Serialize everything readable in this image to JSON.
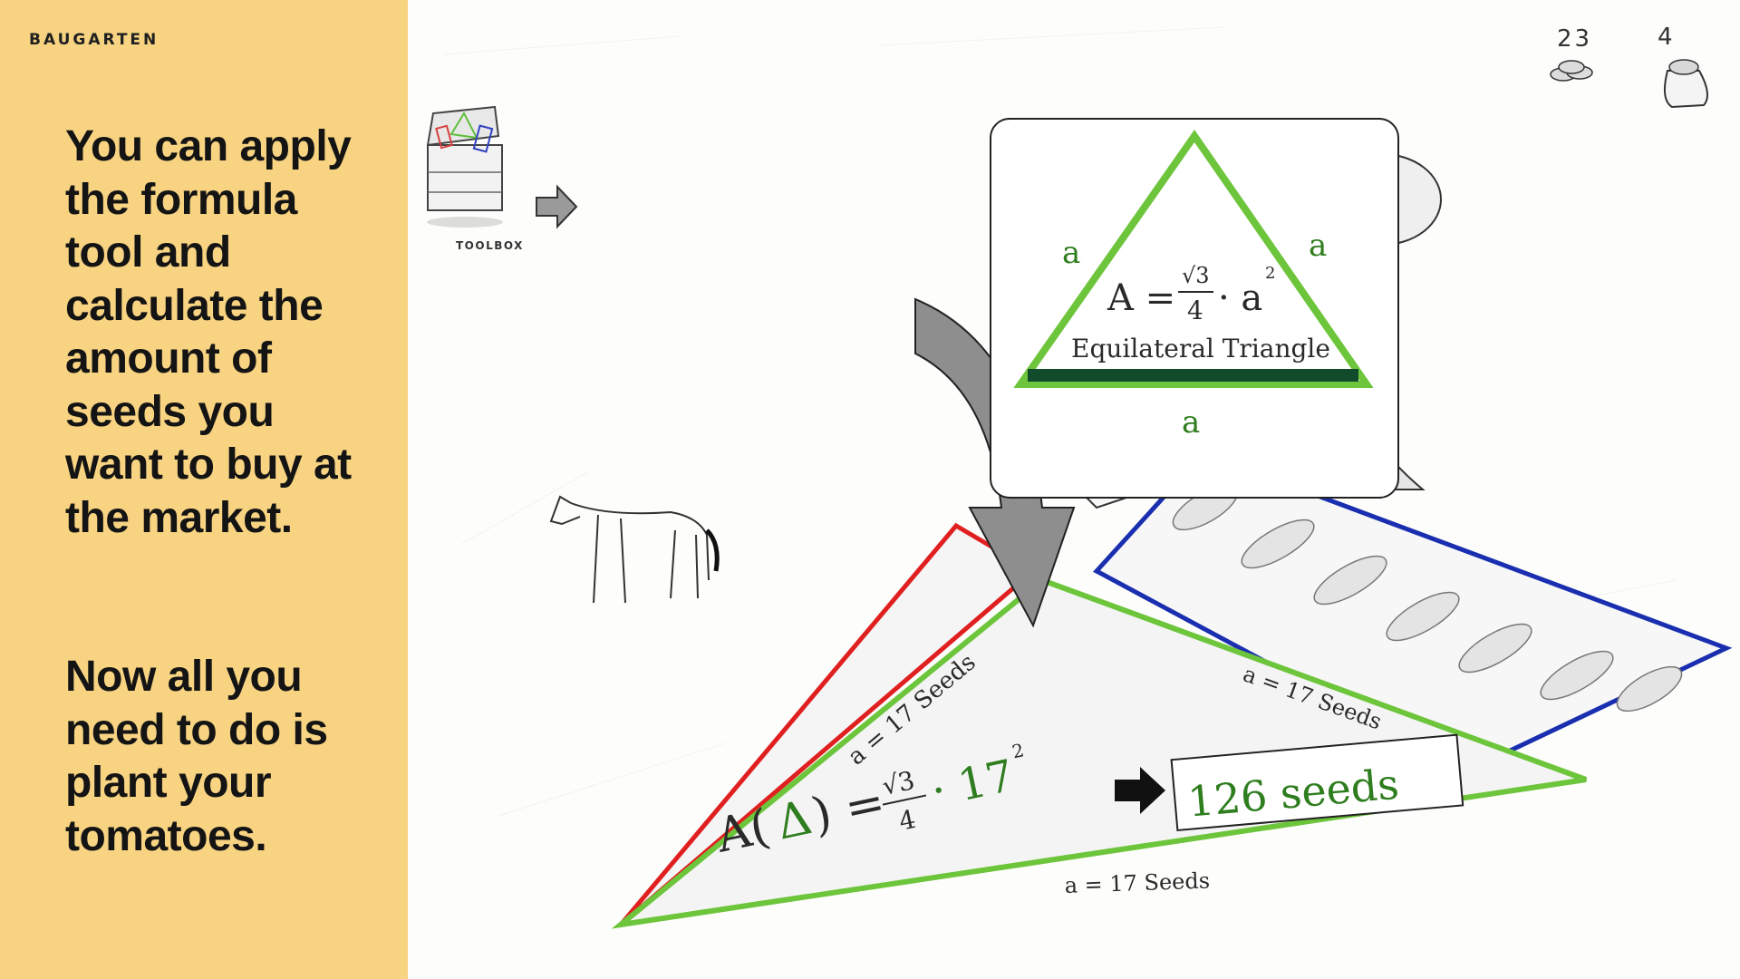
{
  "brand": "BAUGARTEN",
  "lesson": {
    "paragraph_1": "You can apply the formula tool and calculate the amount of seeds you want to buy at the market.",
    "paragraph_2": "Now all you need to do is plant your tomatoes."
  },
  "hud": {
    "coins": "23",
    "coins_icon": "coins-icon",
    "seed_bags": "4",
    "seed_bag_icon": "seed-bag-icon"
  },
  "toolbox": {
    "label": "TOOLBOX",
    "icon": "toolbox-chest-icon"
  },
  "formula_card": {
    "side_label": "a",
    "formula_lhs": "A =",
    "formula_num": "√3",
    "formula_den": "4",
    "formula_tail": "· a",
    "formula_exp": "2",
    "shape_name": "Equilateral Triangle"
  },
  "field": {
    "side_label_left": "a = 17 Seeds",
    "side_label_right": "a = 17 Seeds",
    "side_label_bottom": "a = 17 Seeds",
    "calc_lhs": "A(",
    "calc_triangle": "Δ",
    "calc_mid": ") =",
    "calc_num": "√3",
    "calc_den": "4",
    "calc_tail": "· 17",
    "calc_exp": "2",
    "result": "126 seeds"
  },
  "colors": {
    "sidebar": "#f7d382",
    "green_outline": "#6cc53a",
    "red_outline": "#e02020",
    "blue_outline": "#1a2fb0",
    "result_green": "#2e7d1e"
  }
}
